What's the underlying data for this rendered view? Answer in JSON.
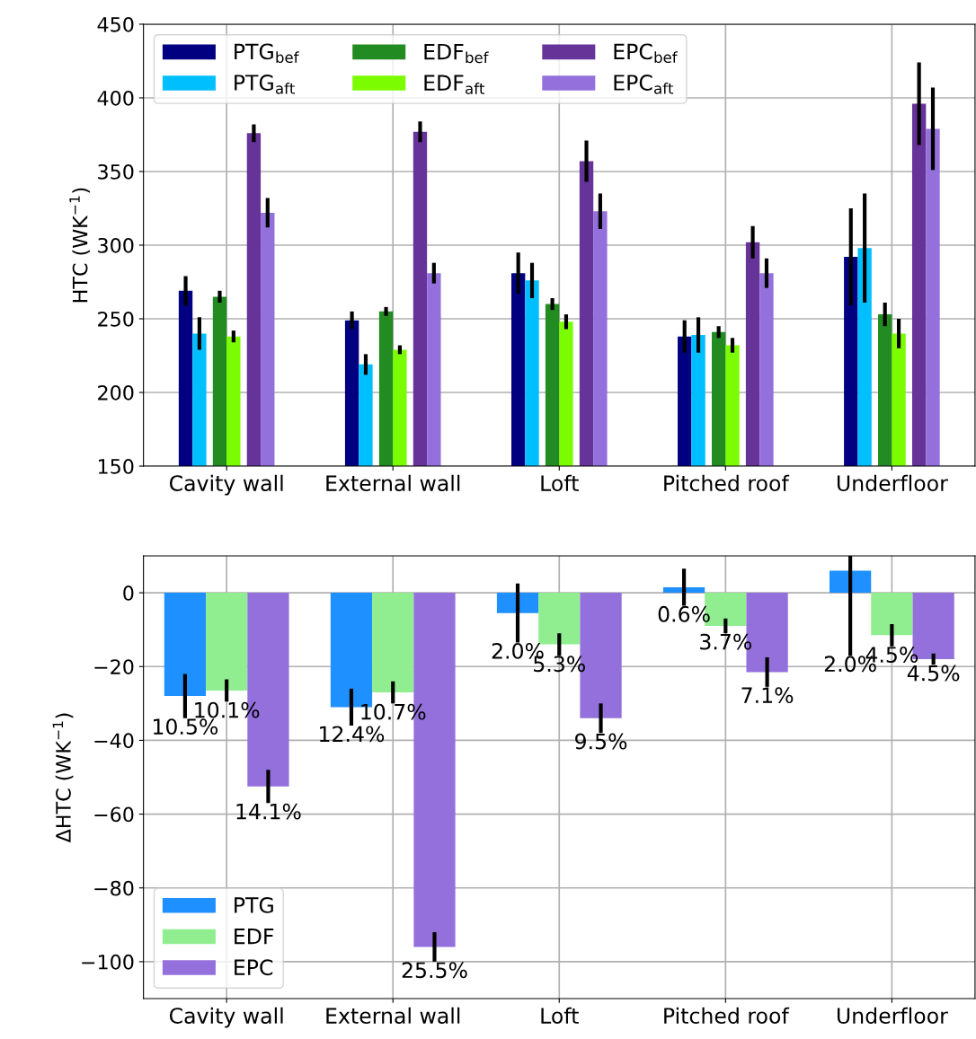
{
  "chart_data": [
    {
      "type": "bar",
      "ylabel": "HTC (WK$^{−1}$)",
      "categories": [
        "Cavity wall",
        "External wall",
        "Loft",
        "Pitched roof",
        "Underfloor"
      ],
      "ylim": [
        150,
        450
      ],
      "yticks": [
        150,
        200,
        250,
        300,
        350,
        400,
        450
      ],
      "grid": true,
      "legend": "top left",
      "series": [
        {
          "name": "PTG$_{bef}$",
          "color": "#000080",
          "values": [
            269,
            249,
            281,
            238,
            292
          ],
          "errors": [
            10,
            6,
            14,
            11,
            33
          ]
        },
        {
          "name": "PTG$_{aft}$",
          "color": "#00bfff",
          "values": [
            240,
            219,
            276,
            239,
            298
          ],
          "errors": [
            11,
            7,
            12,
            12,
            37
          ]
        },
        {
          "name": "EDF$_{bef}$",
          "color": "#228b22",
          "values": [
            265,
            255,
            260,
            241,
            253
          ],
          "errors": [
            4,
            3,
            4,
            4,
            8
          ]
        },
        {
          "name": "EDF$_{aft}$",
          "color": "#7cfc00",
          "values": [
            238,
            229,
            248,
            232,
            240
          ],
          "errors": [
            4,
            3,
            5,
            5,
            10
          ]
        },
        {
          "name": "EPC$_{bef}$",
          "color": "#663399",
          "values": [
            376,
            377,
            357,
            302,
            396
          ],
          "errors": [
            6,
            7,
            14,
            11,
            28
          ]
        },
        {
          "name": "EPC$_{aft}$",
          "color": "#9370db",
          "values": [
            322,
            281,
            323,
            281,
            379
          ],
          "errors": [
            10,
            7,
            12,
            10,
            28
          ]
        }
      ]
    },
    {
      "type": "bar",
      "ylabel": "ΔHTC (WK$^{−1}$)",
      "categories": [
        "Cavity wall",
        "External wall",
        "Loft",
        "Pitched roof",
        "Underfloor"
      ],
      "ylim": [
        -110,
        10
      ],
      "yticks": [
        {
          "value": -100,
          "label": "−100"
        },
        {
          "value": -80,
          "label": "−80"
        },
        {
          "value": -60,
          "label": "−60"
        },
        {
          "value": -40,
          "label": "−40"
        },
        {
          "value": -20,
          "label": "−20"
        },
        0
      ],
      "grid": true,
      "legend": "bottom left",
      "series": [
        {
          "name": "PTG",
          "color": "#1e90ff",
          "values": [
            -28,
            -31,
            -5.5,
            1.5,
            6
          ],
          "errors": [
            6,
            5,
            8,
            5,
            23
          ]
        },
        {
          "name": "EDF",
          "color": "#90ee90",
          "values": [
            -26.5,
            -27,
            -14,
            -9,
            -11.5
          ],
          "errors": [
            3,
            3,
            3,
            2,
            3
          ]
        },
        {
          "name": "EPC",
          "color": "#9370db",
          "values": [
            -52.5,
            -96,
            -34,
            -21.5,
            -18
          ],
          "errors": [
            4.5,
            4,
            4,
            4,
            1.5
          ]
        }
      ],
      "annotations": [
        "10.5%",
        "12.4%",
        "2.0%",
        "0.6%",
        "2.0%",
        "10.1%",
        "10.7%",
        "5.3%",
        "3.7%",
        "4.5%",
        "14.1%",
        "25.5%",
        "9.5%",
        "7.1%",
        "4.5%"
      ]
    }
  ]
}
